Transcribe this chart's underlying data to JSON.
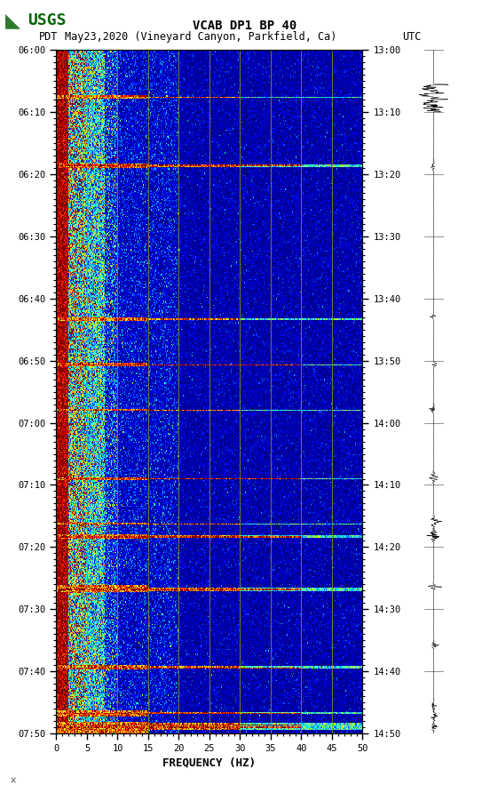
{
  "title_line1": "VCAB DP1 BP 40",
  "title_line2_left": "PDT",
  "title_line2_mid": "May23,2020 (Vineyard Canyon, Parkfield, Ca)",
  "title_line2_right": "UTC",
  "xlabel": "FREQUENCY (HZ)",
  "xlim": [
    0,
    50
  ],
  "xticks": [
    0,
    5,
    10,
    15,
    20,
    25,
    30,
    35,
    40,
    45,
    50
  ],
  "left_yticks_labels": [
    "06:00",
    "06:10",
    "06:20",
    "06:30",
    "06:40",
    "06:50",
    "07:00",
    "07:10",
    "07:20",
    "07:30",
    "07:40",
    "07:50"
  ],
  "right_yticks_labels": [
    "13:00",
    "13:10",
    "13:20",
    "13:30",
    "13:40",
    "13:50",
    "14:00",
    "14:10",
    "14:20",
    "14:30",
    "14:40",
    "14:50"
  ],
  "n_time": 600,
  "n_freq": 500,
  "background_color": "#ffffff",
  "fig_width": 5.52,
  "fig_height": 8.92,
  "colormap": "jet",
  "vgrid_color": "#999900",
  "vgrid_freqs": [
    5,
    10,
    15,
    20,
    25,
    30,
    35,
    40,
    45
  ],
  "event_rows": [
    40,
    41,
    42,
    100,
    101,
    102,
    103,
    235,
    236,
    237,
    275,
    276,
    277,
    315,
    316,
    375,
    376,
    377,
    415,
    416,
    425,
    426,
    427,
    428,
    470,
    471,
    472,
    473,
    474,
    475,
    540,
    541,
    542,
    543,
    580,
    581,
    582,
    583,
    584,
    590,
    591,
    592,
    593,
    594,
    595,
    596,
    597,
    598,
    599
  ],
  "full_band_rows": [
    41,
    101,
    102,
    236,
    276,
    316,
    376,
    416,
    426,
    427,
    472,
    473,
    474,
    541,
    542,
    581,
    582,
    591,
    592,
    593,
    594,
    595,
    596
  ],
  "usgs_color": "#006400",
  "wave_events": [
    0.07,
    0.17,
    0.39,
    0.46,
    0.525,
    0.625,
    0.69,
    0.71,
    0.785,
    0.87,
    0.96,
    0.975,
    0.99
  ]
}
